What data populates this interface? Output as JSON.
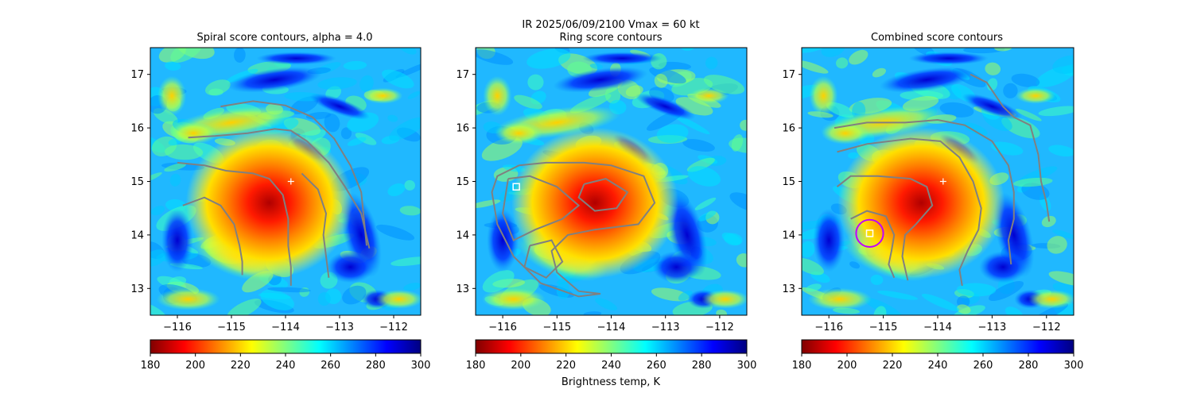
{
  "suptitle": "IR  2025/06/09/2100    Vmax = 60 kt",
  "colormap": {
    "vmin": 180,
    "vmax": 300,
    "ticks": [
      "180",
      "200",
      "220",
      "240",
      "260",
      "280",
      "300"
    ],
    "label": "Brightness temp, K",
    "stops": [
      "#800000",
      "#ff0000",
      "#ff8000",
      "#ffff00",
      "#80ff80",
      "#00ffff",
      "#0080ff",
      "#0000ff",
      "#000080"
    ]
  },
  "chart_data": [
    {
      "type": "heatmap",
      "title": "Spiral score contours, alpha =  4.0",
      "xlim": [
        -116.5,
        -111.5
      ],
      "ylim": [
        12.5,
        17.5
      ],
      "xticks": [
        "−116",
        "−115",
        "−114",
        "−113",
        "−112"
      ],
      "yticks": [
        "13",
        "14",
        "15",
        "16",
        "17"
      ],
      "center_marker": {
        "lon": -113.9,
        "lat": 15.0,
        "color": "#ffffff"
      },
      "contour_color": "#808080",
      "contours": [
        [
          [
            -115.8,
            15.82
          ],
          [
            -115.3,
            15.85
          ],
          [
            -114.7,
            15.9
          ],
          [
            -114.2,
            15.98
          ],
          [
            -113.9,
            15.95
          ],
          [
            -113.6,
            15.75
          ],
          [
            -113.2,
            15.35
          ],
          [
            -112.9,
            14.9
          ],
          [
            -112.6,
            14.4
          ],
          [
            -112.45,
            13.75
          ]
        ],
        [
          [
            -115.2,
            16.4
          ],
          [
            -114.6,
            16.5
          ],
          [
            -114.0,
            16.42
          ],
          [
            -113.5,
            16.2
          ],
          [
            -113.1,
            15.8
          ],
          [
            -112.8,
            15.3
          ],
          [
            -112.6,
            14.8
          ],
          [
            -112.55,
            14.3
          ],
          [
            -112.5,
            13.8
          ]
        ],
        [
          [
            -116.0,
            15.35
          ],
          [
            -115.5,
            15.3
          ],
          [
            -115.1,
            15.2
          ],
          [
            -114.6,
            15.15
          ],
          [
            -114.3,
            15.05
          ],
          [
            -114.05,
            14.75
          ],
          [
            -113.95,
            14.3
          ],
          [
            -113.95,
            13.8
          ],
          [
            -113.9,
            13.4
          ],
          [
            -113.9,
            13.05
          ]
        ],
        [
          [
            -115.9,
            14.55
          ],
          [
            -115.5,
            14.7
          ],
          [
            -115.2,
            14.55
          ],
          [
            -114.95,
            14.2
          ],
          [
            -114.85,
            13.8
          ],
          [
            -114.8,
            13.5
          ],
          [
            -114.8,
            13.25
          ]
        ],
        [
          [
            -113.7,
            15.15
          ],
          [
            -113.4,
            14.85
          ],
          [
            -113.25,
            14.4
          ],
          [
            -113.3,
            14.0
          ],
          [
            -113.25,
            13.6
          ],
          [
            -113.2,
            13.2
          ]
        ]
      ]
    },
    {
      "type": "heatmap",
      "title": "Ring score contours",
      "xlim": [
        -116.5,
        -111.5
      ],
      "ylim": [
        12.5,
        17.5
      ],
      "xticks": [
        "−116",
        "−115",
        "−114",
        "−113",
        "−112"
      ],
      "yticks": [
        "13",
        "14",
        "15",
        "16",
        "17"
      ],
      "center_marker": {
        "lon": -115.75,
        "lat": 14.9,
        "shape": "square",
        "color": "#ffffff"
      },
      "contour_color": "#808080",
      "contours": [
        [
          [
            -115.7,
            15.3
          ],
          [
            -115.2,
            15.35
          ],
          [
            -114.5,
            15.35
          ],
          [
            -114.0,
            15.3
          ],
          [
            -113.4,
            15.1
          ],
          [
            -113.2,
            14.6
          ],
          [
            -113.5,
            14.2
          ],
          [
            -114.3,
            14.1
          ],
          [
            -114.8,
            14.0
          ],
          [
            -115.1,
            13.7
          ],
          [
            -115.0,
            13.3
          ],
          [
            -114.6,
            12.95
          ],
          [
            -114.2,
            12.9
          ],
          [
            -114.6,
            12.85
          ],
          [
            -115.3,
            13.1
          ],
          [
            -115.8,
            13.6
          ],
          [
            -116.1,
            14.2
          ],
          [
            -116.2,
            14.8
          ],
          [
            -116.1,
            15.1
          ],
          [
            -115.7,
            15.3
          ]
        ],
        [
          [
            -114.5,
            14.95
          ],
          [
            -114.1,
            15.05
          ],
          [
            -113.7,
            14.8
          ],
          [
            -113.9,
            14.5
          ],
          [
            -114.3,
            14.45
          ],
          [
            -114.6,
            14.7
          ],
          [
            -114.5,
            14.95
          ]
        ],
        [
          [
            -115.9,
            15.05
          ],
          [
            -115.5,
            15.1
          ],
          [
            -115.0,
            14.9
          ],
          [
            -114.6,
            14.55
          ],
          [
            -114.9,
            14.3
          ],
          [
            -115.4,
            14.1
          ],
          [
            -115.8,
            13.9
          ],
          [
            -116.0,
            14.4
          ],
          [
            -115.9,
            15.05
          ]
        ],
        [
          [
            -115.5,
            13.8
          ],
          [
            -115.1,
            13.9
          ],
          [
            -114.9,
            13.5
          ],
          [
            -115.2,
            13.2
          ],
          [
            -115.6,
            13.4
          ],
          [
            -115.5,
            13.8
          ]
        ]
      ]
    },
    {
      "type": "heatmap",
      "title": "Combined score contours",
      "xlim": [
        -116.5,
        -111.5
      ],
      "ylim": [
        12.5,
        17.5
      ],
      "xticks": [
        "−116",
        "−115",
        "−114",
        "−113",
        "−112"
      ],
      "yticks": [
        "13",
        "14",
        "15",
        "16",
        "17"
      ],
      "center_marker": {
        "lon": -113.9,
        "lat": 15.0,
        "color": "#ffffff"
      },
      "square_marker": {
        "lon": -115.25,
        "lat": 14.03,
        "color": "#ffffff"
      },
      "circle": {
        "lon": -115.25,
        "lat": 14.03,
        "radius_deg": 0.25,
        "color": "#c000ff"
      },
      "contour_color": "#808080",
      "contours": [
        [
          [
            -115.9,
            16.0
          ],
          [
            -115.3,
            16.1
          ],
          [
            -114.6,
            16.1
          ],
          [
            -114.0,
            16.15
          ],
          [
            -113.5,
            16.05
          ],
          [
            -113.0,
            15.75
          ],
          [
            -112.7,
            15.3
          ],
          [
            -112.6,
            14.8
          ],
          [
            -112.6,
            14.3
          ],
          [
            -112.7,
            13.9
          ],
          [
            -112.65,
            13.45
          ]
        ],
        [
          [
            -115.85,
            15.55
          ],
          [
            -115.3,
            15.7
          ],
          [
            -114.5,
            15.8
          ],
          [
            -113.95,
            15.75
          ],
          [
            -113.6,
            15.45
          ],
          [
            -113.35,
            15.0
          ],
          [
            -113.2,
            14.5
          ],
          [
            -113.25,
            14.1
          ],
          [
            -113.45,
            13.7
          ],
          [
            -113.6,
            13.35
          ],
          [
            -113.55,
            13.05
          ]
        ],
        [
          [
            -113.4,
            17.0
          ],
          [
            -113.1,
            16.85
          ],
          [
            -112.8,
            16.4
          ],
          [
            -112.6,
            16.2
          ],
          [
            -112.3,
            16.05
          ],
          [
            -112.15,
            15.5
          ],
          [
            -112.1,
            15.0
          ],
          [
            -112.0,
            14.6
          ],
          [
            -111.95,
            14.25
          ]
        ],
        [
          [
            -115.85,
            14.9
          ],
          [
            -115.6,
            15.1
          ],
          [
            -115.1,
            15.1
          ],
          [
            -114.5,
            15.05
          ],
          [
            -114.2,
            14.9
          ],
          [
            -114.1,
            14.55
          ],
          [
            -114.4,
            14.2
          ],
          [
            -114.6,
            14.0
          ],
          [
            -114.65,
            13.6
          ],
          [
            -114.55,
            13.15
          ]
        ],
        [
          [
            -115.6,
            14.3
          ],
          [
            -115.3,
            14.45
          ],
          [
            -114.95,
            14.35
          ],
          [
            -114.8,
            14.0
          ],
          [
            -114.85,
            13.7
          ],
          [
            -114.9,
            13.45
          ],
          [
            -114.8,
            13.2
          ]
        ]
      ]
    }
  ]
}
